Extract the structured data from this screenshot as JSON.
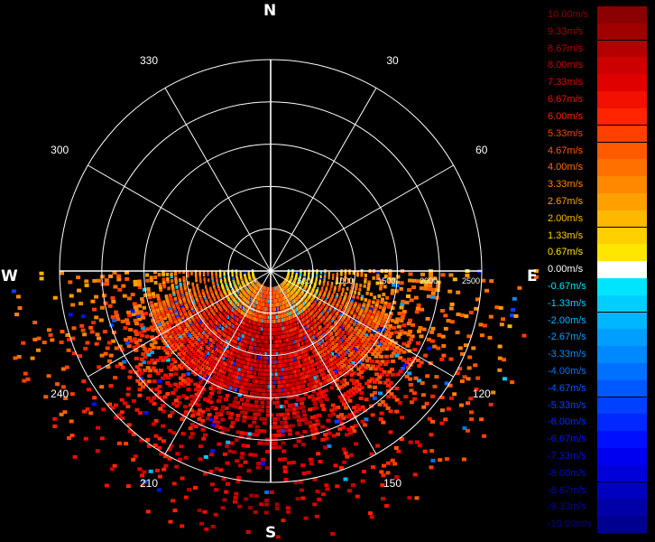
{
  "compass": {
    "n": "N",
    "e": "E",
    "s": "S",
    "w": "W"
  },
  "colors": {
    "background": "#000000",
    "grid": "#ffffff",
    "nodata": "#000000"
  },
  "chart_data": {
    "type": "heatmap",
    "title": "",
    "projection": "polar-ppi",
    "range_rings": [
      500,
      1000,
      1500,
      2000,
      2500
    ],
    "range_ring_labels": [
      "500",
      "1000",
      "1500",
      "2000",
      "2500"
    ],
    "max_range": 2500,
    "azimuth_spokes_deg": [
      0,
      30,
      60,
      90,
      120,
      150,
      180,
      210,
      240,
      270,
      300,
      330
    ],
    "azimuth_labels": [
      {
        "deg": 30,
        "text": "30"
      },
      {
        "deg": 60,
        "text": "60"
      },
      {
        "deg": 120,
        "text": "120"
      },
      {
        "deg": 150,
        "text": "150"
      },
      {
        "deg": 210,
        "text": "210"
      },
      {
        "deg": 240,
        "text": "240"
      },
      {
        "deg": 300,
        "text": "300"
      },
      {
        "deg": 330,
        "text": "330"
      }
    ],
    "data_sector_deg": [
      90,
      270
    ],
    "units": "m/s",
    "colorbar": {
      "labels": [
        "10.00m/s",
        "9.33m/s",
        "8.67m/s",
        "8.00m/s",
        "7.33m/s",
        "6.67m/s",
        "6.00m/s",
        "5.33m/s",
        "4.67m/s",
        "4.00m/s",
        "3.33m/s",
        "2.67m/s",
        "2.00m/s",
        "1.33m/s",
        "0.67m/s",
        "0.00m/s",
        "-0.67m/s",
        "-1.33m/s",
        "-2.00m/s",
        "-2.67m/s",
        "-3.33m/s",
        "-4.00m/s",
        "-4.67m/s",
        "-5.33m/s",
        "-6.00m/s",
        "-6.67m/s",
        "-7.33m/s",
        "-8.00m/s",
        "-8.67m/s",
        "-9.33m/s",
        "-10.00m/s"
      ],
      "values": [
        10.0,
        9.33,
        8.67,
        8.0,
        7.33,
        6.67,
        6.0,
        5.33,
        4.67,
        4.0,
        3.33,
        2.67,
        2.0,
        1.33,
        0.67,
        0.0,
        -0.67,
        -1.33,
        -2.0,
        -2.67,
        -3.33,
        -4.0,
        -4.67,
        -5.33,
        -6.0,
        -6.67,
        -7.33,
        -8.0,
        -8.67,
        -9.33,
        -10.0
      ],
      "colors": [
        "#8b0000",
        "#a00000",
        "#b50000",
        "#cc0000",
        "#e00000",
        "#f21000",
        "#ff2500",
        "#ff4000",
        "#ff5a00",
        "#ff7000",
        "#ff8800",
        "#ffa000",
        "#ffb800",
        "#ffd000",
        "#ffe600",
        "#ffffff",
        "#00e5ff",
        "#00ceff",
        "#00b7ff",
        "#009fff",
        "#0088ff",
        "#0070ff",
        "#0058ff",
        "#0040ff",
        "#0028ff",
        "#0010ff",
        "#0000f0",
        "#0000d8",
        "#0000c0",
        "#0000a8",
        "#000090"
      ]
    }
  }
}
